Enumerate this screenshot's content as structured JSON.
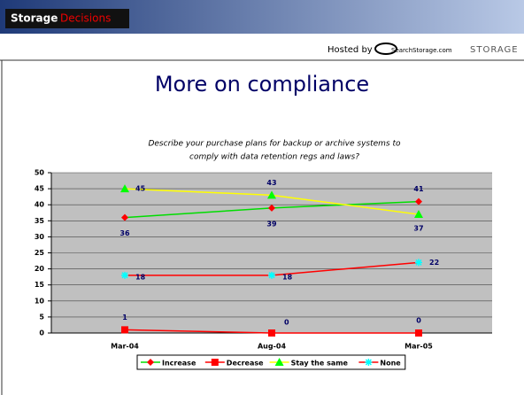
{
  "header": {
    "brand": "Storage",
    "brand_accent": "Decisions",
    "hosted_by": "Hosted by",
    "host": "SearchStorage.com",
    "host_mag": "STORAGE"
  },
  "chart_data": {
    "type": "line",
    "title": "More on compliance",
    "subtitle": [
      "Describe your purchase plans for backup or archive systems to",
      "comply with data retention regs and laws?"
    ],
    "categories": [
      "Mar-04",
      "Aug-04",
      "Mar-05"
    ],
    "series": [
      {
        "name": "Increase",
        "color": "#00dd00",
        "marker_color": "#ff0000",
        "marker": "diamond",
        "values": [
          36,
          39,
          41
        ]
      },
      {
        "name": "Decrease",
        "color": "#ff0000",
        "marker_color": "#ff0000",
        "marker": "square",
        "values": [
          1,
          0,
          0
        ]
      },
      {
        "name": "Stay the same",
        "color": "#ffff00",
        "marker_color": "#00ff00",
        "marker": "triangle",
        "values": [
          45,
          43,
          37
        ]
      },
      {
        "name": "None",
        "color": "#ff0000",
        "marker_color": "#00ffff",
        "marker": "star",
        "values": [
          18,
          18,
          22
        ]
      }
    ],
    "ylim": [
      0,
      50
    ],
    "yticks": [
      0,
      5,
      10,
      15,
      20,
      25,
      30,
      35,
      40,
      45,
      50
    ],
    "grid": true,
    "legend": "bottom"
  }
}
